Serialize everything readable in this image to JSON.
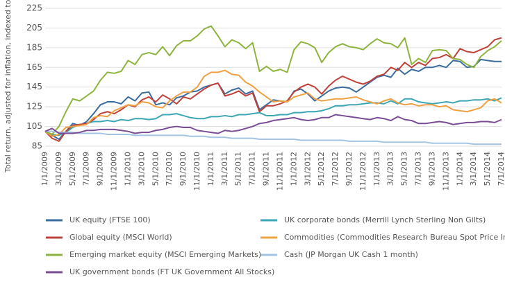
{
  "chart_data": {
    "type": "line",
    "y_label": "Total return, adjusted for inflation, indexed to 100",
    "categories": [
      "1/1/2009",
      null,
      "3/1/2009",
      null,
      "5/1/2009",
      null,
      "7/1/2009",
      null,
      "9/1/2009",
      null,
      "11/1/2009",
      null,
      "1/1/2010",
      null,
      "3/1/2010",
      null,
      "5/1/2010",
      null,
      "7/1/2010",
      null,
      "9/1/2010",
      null,
      "11/1/2010",
      null,
      "1/1/2011",
      null,
      "3/1/2011",
      null,
      "5/1/2011",
      null,
      "7/1/2011",
      null,
      "9/1/2011",
      null,
      "11/1/2011",
      null,
      "1/1/2012",
      null,
      "3/1/2012",
      null,
      "5/1/2012",
      null,
      "7/1/2012",
      null,
      "9/1/2012",
      null,
      "11/1/2012",
      null,
      "1/1/2013",
      null,
      "3/1/2013",
      null,
      "5/1/2013",
      null,
      "7/1/2013",
      null,
      "9/1/2013",
      null,
      "11/1/2013",
      null,
      "1/1/2014",
      null,
      "3/1/2014",
      null,
      "5/1/2014",
      null,
      "7/1/2014"
    ],
    "ylim": [
      85,
      225
    ],
    "yticks": [
      85,
      105,
      125,
      145,
      165,
      185,
      205,
      225
    ],
    "grid": true,
    "series": [
      {
        "name": "UK equity (FTSE 100)",
        "color": "#3a6c9e",
        "values": [
          100,
          96,
          92,
          100,
          108,
          106,
          110,
          118,
          127,
          130,
          130,
          128,
          135,
          131,
          139,
          140,
          127,
          129,
          127,
          134,
          136,
          140,
          141,
          145,
          147,
          149,
          138,
          142,
          144,
          138,
          141,
          122,
          127,
          132,
          131,
          130,
          141,
          143,
          138,
          131,
          136,
          141,
          144,
          145,
          144,
          140,
          145,
          150,
          155,
          157,
          155,
          164,
          158,
          163,
          161,
          165,
          165,
          167,
          165,
          172,
          171,
          165,
          166,
          173,
          172,
          171,
          171
        ]
      },
      {
        "name": "UK corporate bonds (Merrill Lynch Sterling Non Gilts)",
        "color": "#3ba7b4",
        "values": [
          100,
          97,
          96,
          99,
          104,
          107,
          108,
          110,
          110,
          111,
          110,
          112,
          111,
          113,
          113,
          112,
          113,
          117,
          117,
          118,
          116,
          114,
          113,
          113,
          115,
          115,
          116,
          115,
          117,
          117,
          118,
          119,
          116,
          116,
          117,
          117,
          119,
          119,
          120,
          120,
          121,
          123,
          126,
          126,
          127,
          127,
          128,
          129,
          129,
          128,
          131,
          128,
          133,
          133,
          130,
          129,
          128,
          129,
          130,
          129,
          131,
          131,
          132,
          132,
          133,
          131,
          134
        ]
      },
      {
        "name": "Global equity (MSCI World)",
        "color": "#c0413a",
        "values": [
          100,
          93,
          90,
          100,
          106,
          107,
          108,
          112,
          118,
          120,
          118,
          122,
          127,
          125,
          132,
          135,
          130,
          137,
          133,
          128,
          135,
          133,
          138,
          143,
          147,
          149,
          136,
          138,
          141,
          136,
          139,
          120,
          126,
          126,
          128,
          131,
          140,
          145,
          148,
          145,
          138,
          146,
          152,
          156,
          153,
          150,
          148,
          151,
          156,
          158,
          165,
          162,
          170,
          165,
          170,
          167,
          174,
          175,
          178,
          174,
          184,
          181,
          180,
          183,
          186,
          193,
          195
        ]
      },
      {
        "name": "Commodities (Commodities Research Bureau Spot Price Index)",
        "color": "#f0a043",
        "values": [
          100,
          95,
          97,
          104,
          105,
          106,
          107,
          114,
          116,
          115,
          121,
          124,
          127,
          126,
          130,
          129,
          125,
          124,
          131,
          136,
          140,
          140,
          145,
          156,
          160,
          160,
          162,
          158,
          157,
          150,
          146,
          140,
          135,
          130,
          131,
          130,
          135,
          137,
          139,
          133,
          131,
          132,
          133,
          133,
          134,
          135,
          132,
          130,
          128,
          131,
          133,
          129,
          127,
          128,
          126,
          127,
          127,
          125,
          126,
          122,
          121,
          120,
          122,
          124,
          131,
          133,
          129
        ]
      },
      {
        "name": "Emerging market equity (MSCI Emerging Markets)",
        "color": "#8db43c",
        "values": [
          100,
          97,
          105,
          120,
          133,
          131,
          136,
          141,
          152,
          160,
          159,
          161,
          172,
          168,
          178,
          180,
          178,
          186,
          177,
          187,
          192,
          192,
          197,
          204,
          207,
          197,
          186,
          193,
          190,
          184,
          190,
          161,
          166,
          161,
          163,
          160,
          183,
          191,
          189,
          185,
          170,
          180,
          186,
          189,
          186,
          185,
          183,
          189,
          194,
          190,
          189,
          185,
          195,
          168,
          174,
          170,
          182,
          183,
          182,
          174,
          173,
          168,
          165,
          176,
          182,
          186,
          192
        ]
      },
      {
        "name": "Cash (JP Morgan UK Cash 1 month)",
        "color": "#a3c3e3",
        "values": [
          100,
          100,
          99,
          99,
          99,
          98,
          98,
          98,
          98,
          97,
          97,
          97,
          97,
          96,
          96,
          96,
          96,
          96,
          96,
          96,
          96,
          95,
          95,
          95,
          94,
          94,
          94,
          93,
          93,
          93,
          93,
          92,
          92,
          92,
          92,
          92,
          92,
          91,
          91,
          91,
          91,
          91,
          91,
          91,
          90,
          90,
          90,
          90,
          90,
          89,
          89,
          89,
          89,
          89,
          89,
          89,
          88,
          88,
          88,
          88,
          88,
          88,
          87,
          87,
          87,
          87,
          87
        ]
      },
      {
        "name": "UK government bonds (FT UK Government All Stocks)",
        "color": "#7a4c96",
        "values": [
          100,
          103,
          98,
          98,
          98,
          99,
          101,
          101,
          102,
          102,
          102,
          101,
          100,
          98,
          99,
          99,
          101,
          102,
          104,
          105,
          104,
          104,
          101,
          100,
          99,
          98,
          101,
          100,
          101,
          103,
          105,
          108,
          109,
          111,
          112,
          113,
          114,
          112,
          111,
          112,
          114,
          114,
          117,
          116,
          115,
          114,
          113,
          112,
          114,
          113,
          111,
          115,
          112,
          111,
          108,
          108,
          109,
          110,
          109,
          107,
          108,
          109,
          109,
          110,
          110,
          109,
          112
        ]
      }
    ]
  }
}
